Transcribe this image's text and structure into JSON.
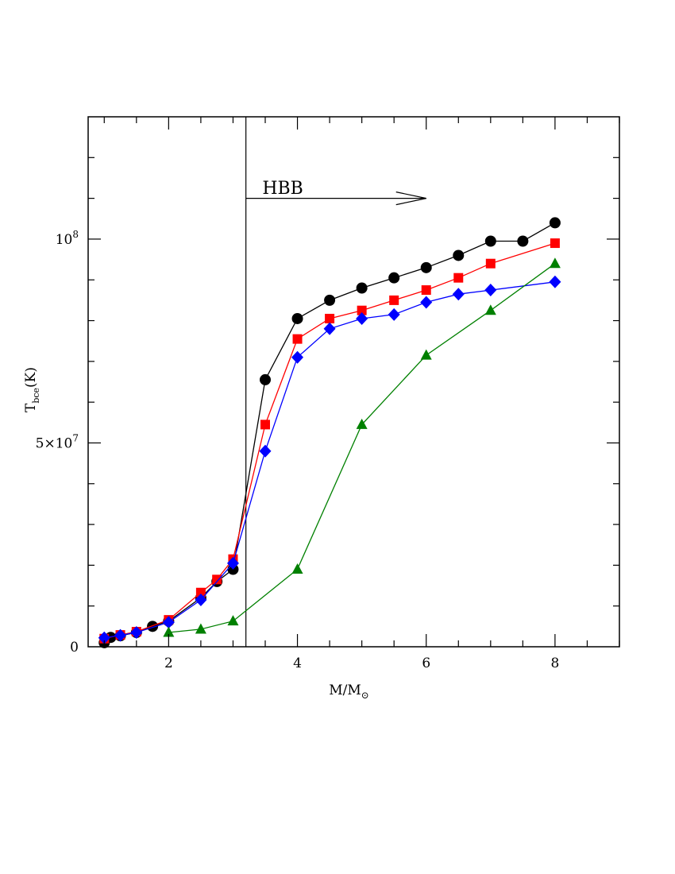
{
  "chart_data": {
    "type": "line",
    "title": "",
    "xlabel": "M/M",
    "xlabel_symbol": "⊙",
    "ylabel": "T",
    "ylabel_sub": "bce",
    "ylabel_suffix": "(K)",
    "xlim": [
      0.75,
      9.0
    ],
    "ylim": [
      0,
      130000000
    ],
    "x_ticks": [
      2,
      4,
      6,
      8
    ],
    "x_tick_labels": [
      "2",
      "4",
      "6",
      "8"
    ],
    "y_ticks": [
      0,
      50000000,
      100000000
    ],
    "y_tick_labels": [
      {
        "base": "0",
        "exp": ""
      },
      {
        "base": "5×10",
        "exp": "7"
      },
      {
        "base": "10",
        "exp": "8"
      }
    ],
    "grid": false,
    "annotations": [
      {
        "text": "HBB",
        "type": "arrow",
        "x_start": 3.2,
        "x_end": 6.0,
        "y": 110000000,
        "label_x": 3.8,
        "label_y": 113000000
      }
    ],
    "vertical_line": {
      "x": 3.2
    },
    "series": [
      {
        "color": "#000000",
        "marker": "circle",
        "x": [
          1.0,
          1.1,
          1.25,
          1.5,
          1.75,
          2.0,
          2.5,
          2.75,
          3.0,
          3.5,
          4.0,
          4.5,
          5.0,
          5.5,
          6.0,
          6.5,
          7.0,
          7.5,
          8.0
        ],
        "y": [
          1000000,
          2300000,
          2700000,
          3500000,
          5000000,
          6300000,
          12000000,
          16000000,
          19000000,
          65500000,
          80500000,
          85000000,
          88000000,
          90500000,
          93000000,
          96000000,
          99500000,
          99500000,
          104000000
        ]
      },
      {
        "color": "#ff0000",
        "marker": "square",
        "x": [
          1.0,
          1.25,
          1.5,
          2.0,
          2.5,
          2.75,
          3.0,
          3.5,
          4.0,
          4.5,
          5.0,
          5.5,
          6.0,
          6.5,
          7.0,
          8.0
        ],
        "y": [
          2000000,
          2900000,
          3700000,
          6600000,
          13300000,
          16500000,
          21500000,
          54500000,
          75500000,
          80500000,
          82500000,
          85000000,
          87500000,
          90500000,
          94000000,
          99000000
        ]
      },
      {
        "color": "#0000ff",
        "marker": "diamond",
        "x": [
          1.0,
          1.25,
          1.5,
          2.0,
          2.5,
          3.0,
          3.5,
          4.0,
          4.5,
          5.0,
          5.5,
          6.0,
          6.5,
          7.0,
          8.0
        ],
        "y": [
          2200000,
          2800000,
          3500000,
          6000000,
          11500000,
          20500000,
          48000000,
          71000000,
          78000000,
          80500000,
          81500000,
          84500000,
          86500000,
          87500000,
          89500000
        ]
      },
      {
        "color": "#008000",
        "marker": "triangle",
        "x": [
          2.0,
          2.5,
          3.0,
          4.0,
          5.0,
          6.0,
          7.0,
          8.0
        ],
        "y": [
          3500000,
          4300000,
          6300000,
          19000000,
          54500000,
          71500000,
          82500000,
          94000000
        ]
      }
    ]
  }
}
